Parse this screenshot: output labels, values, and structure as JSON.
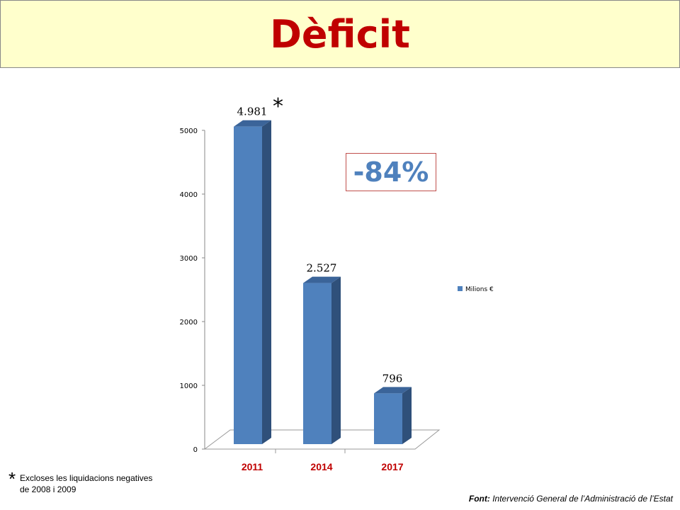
{
  "title": "Dèficit",
  "change_badge": "-84%",
  "footnote": {
    "marker": "*",
    "text": "Excloses les liquidacions negatives de 2008 i 2009"
  },
  "source": {
    "label": "Font:",
    "text": " Intervenció General de l’Administració de l’Estat"
  },
  "chart_data": {
    "type": "bar",
    "categories": [
      "2011",
      "2014",
      "2017"
    ],
    "series": [
      {
        "name": "Milions €",
        "values": [
          4981,
          2527,
          796
        ]
      }
    ],
    "data_labels": [
      "4.981",
      "2.527",
      "796"
    ],
    "annotation": "*",
    "yticks": [
      0,
      1000,
      2000,
      3000,
      4000,
      5000
    ],
    "ylim": [
      0,
      5000
    ],
    "legend": "right",
    "grid": false,
    "colors": {
      "bar": "#4f81bd",
      "bar_side": "#2f507a",
      "category_label": "#c00000"
    }
  }
}
